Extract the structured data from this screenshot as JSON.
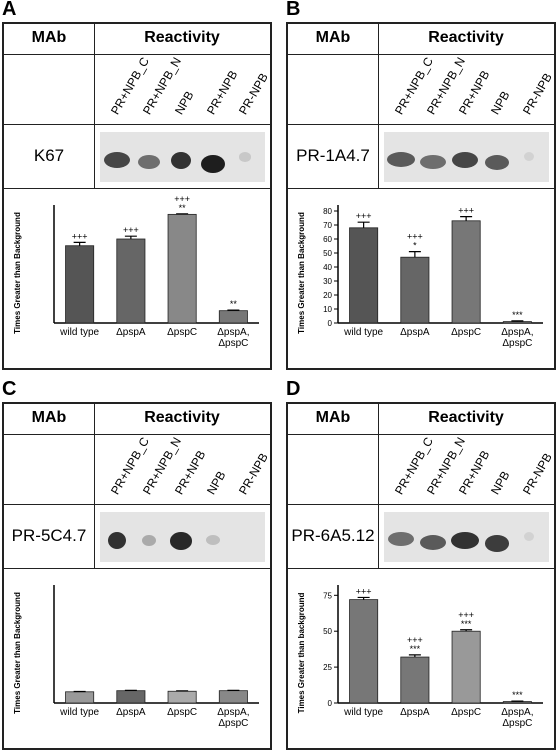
{
  "panels": [
    {
      "letter": "A",
      "header": {
        "mab": "MAb",
        "reactivity": "Reactivity"
      },
      "mab_name": "K67",
      "lanes": [
        "PR+NPB_C",
        "PR+NPB_N",
        "NPB",
        "PR+NPB",
        "PR-NPB"
      ]
    },
    {
      "letter": "B",
      "header": {
        "mab": "MAb",
        "reactivity": "Reactivity"
      },
      "mab_name": "PR-1A4.7",
      "lanes": [
        "PR+NPB_C",
        "PR+NPB_N",
        "PR+NPB",
        "NPB",
        "PR-NPB"
      ]
    },
    {
      "letter": "C",
      "header": {
        "mab": "MAb",
        "reactivity": "Reactivity"
      },
      "mab_name": "PR-5C4.7",
      "lanes": [
        "PR+NPB_C",
        "PR+NPB_N",
        "PR+NPB",
        "NPB",
        "PR-NPB"
      ]
    },
    {
      "letter": "D",
      "header": {
        "mab": "MAb",
        "reactivity": "Reactivity"
      },
      "mab_name": "PR-6A5.12",
      "lanes": [
        "PR+NPB_C",
        "PR+NPB_N",
        "PR+NPB",
        "NPB",
        "PR-NPB"
      ]
    }
  ],
  "chart_data": [
    {
      "type": "bar",
      "y_label": "Times Greater than Background",
      "categories": [
        "wild type",
        "ΔpspA",
        "ΔpspC",
        "ΔpspA, ΔpspC"
      ],
      "values": [
        6.9,
        7.5,
        9.7,
        1.1
      ],
      "errors": [
        0.3,
        0.25,
        0.05,
        0.05
      ],
      "annotations": [
        [
          "+++"
        ],
        [
          "+++"
        ],
        [
          "+++",
          "**"
        ],
        [
          "**"
        ]
      ],
      "colors": [
        "#555555",
        "#666666",
        "#888888",
        "#777777"
      ],
      "ylim": [
        0,
        10
      ],
      "yticks": []
    },
    {
      "type": "bar",
      "y_label": "Times Greater than Background",
      "categories": [
        "wild type",
        "ΔpspA",
        "ΔpspC",
        "ΔpspA, ΔpspC"
      ],
      "values": [
        68,
        47,
        73,
        1
      ],
      "errors": [
        4,
        4,
        3,
        0.5
      ],
      "annotations": [
        [
          "+++"
        ],
        [
          "+++",
          "*"
        ],
        [
          "+++"
        ],
        [
          "***"
        ]
      ],
      "colors": [
        "#555555",
        "#666666",
        "#777777",
        "#777777"
      ],
      "ylim": [
        0,
        80
      ],
      "yticks": [
        0,
        10,
        20,
        30,
        40,
        50,
        60,
        70,
        80
      ]
    },
    {
      "type": "bar",
      "y_label": "Times Greater than Background",
      "categories": [
        "wild type",
        "ΔpspA",
        "ΔpspC",
        "ΔpspA, ΔpspC"
      ],
      "values": [
        1.0,
        1.1,
        1.05,
        1.1
      ],
      "errors": [
        0.03,
        0.03,
        0.03,
        0.03
      ],
      "annotations": [
        [],
        [],
        [],
        []
      ],
      "colors": [
        "#999999",
        "#666666",
        "#aaaaaa",
        "#888888"
      ],
      "ylim": [
        0,
        10
      ],
      "yticks": []
    },
    {
      "type": "bar",
      "y_label": "Times Greater than background",
      "categories": [
        "wild type",
        "ΔpspA",
        "ΔpspC",
        "ΔpspA, ΔpspC"
      ],
      "values": [
        72,
        32,
        50,
        1
      ],
      "errors": [
        1.5,
        1.5,
        1,
        0.3
      ],
      "annotations": [
        [
          "+++"
        ],
        [
          "+++",
          "***"
        ],
        [
          "+++",
          "***"
        ],
        [
          "***"
        ]
      ],
      "colors": [
        "#777777",
        "#777777",
        "#999999",
        "#777777"
      ],
      "ylim": [
        0,
        78
      ],
      "yticks": [
        0,
        25,
        50,
        75
      ]
    }
  ]
}
